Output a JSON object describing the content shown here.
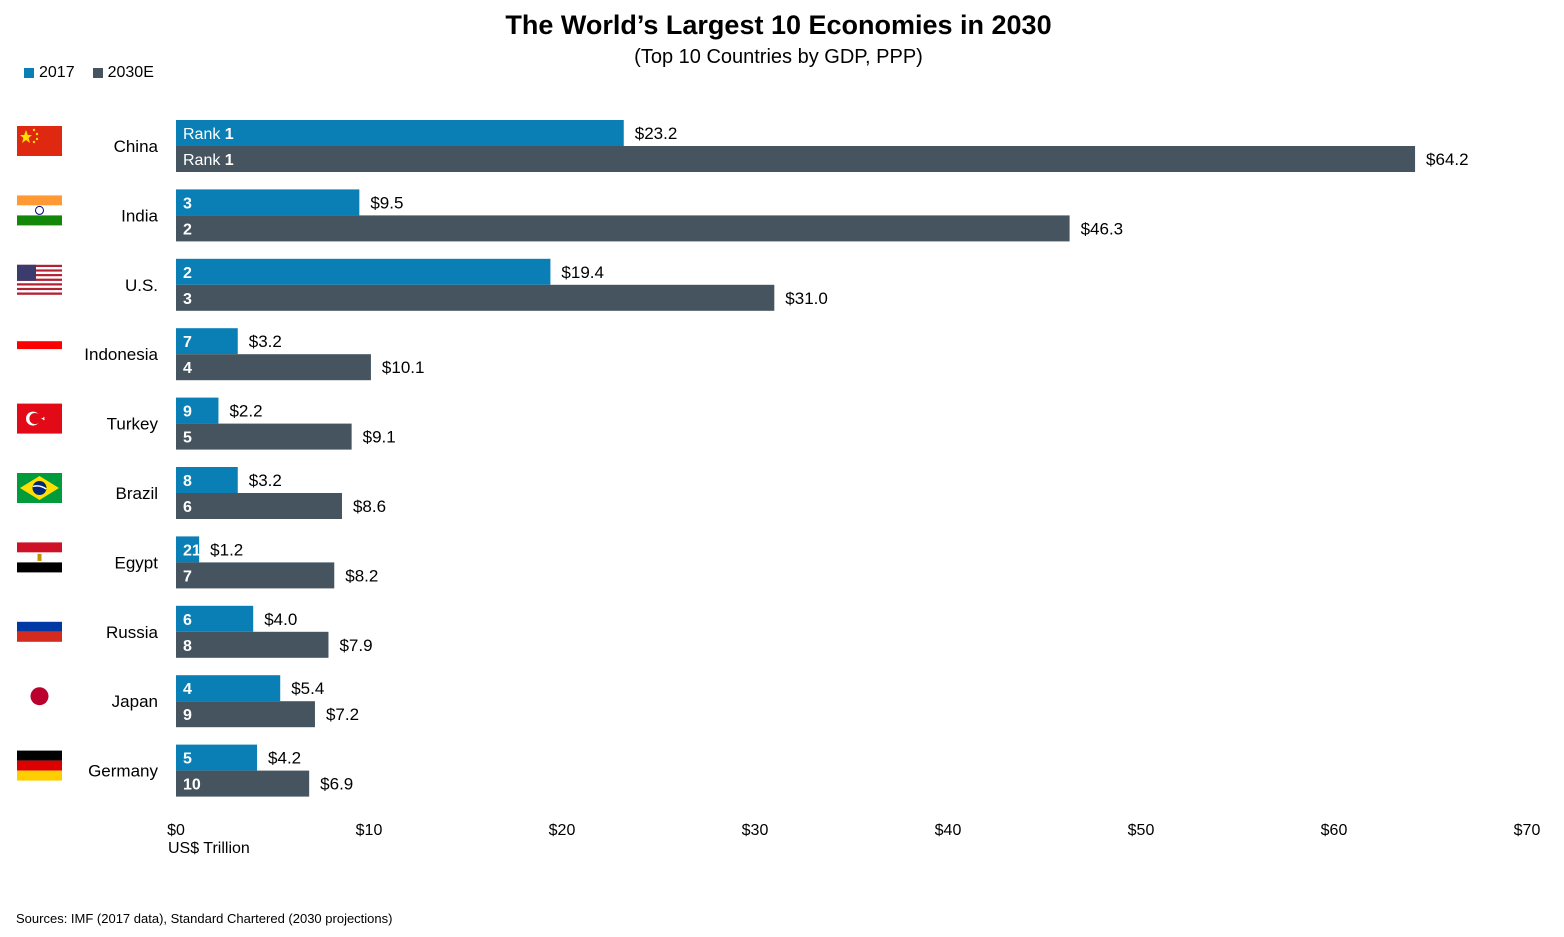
{
  "title": "The World’s Largest 10 Economies in 2030",
  "subtitle": "(Top 10 Countries by GDP, PPP)",
  "source": "Sources: IMF (2017 data), Standard Chartered (2030 projections)",
  "colors": {
    "series_2017": "#0a7fb5",
    "series_2030": "#45545f"
  },
  "chart_data": {
    "type": "bar",
    "orientation": "horizontal",
    "title": "The World’s Largest 10 Economies in 2030",
    "subtitle": "(Top 10 Countries by GDP, PPP)",
    "xlabel": "US$ Trillion",
    "ylabel": "",
    "xlim": [
      0,
      70
    ],
    "x_ticks": [
      0,
      10,
      20,
      30,
      40,
      50,
      60,
      70
    ],
    "x_tick_labels": [
      "$0",
      "$10",
      "$20",
      "$30",
      "$40",
      "$50",
      "$60",
      "$70"
    ],
    "legend_position": "top-left",
    "grid": false,
    "categories": [
      "China",
      "India",
      "U.S.",
      "Indonesia",
      "Turkey",
      "Brazil",
      "Egypt",
      "Russia",
      "Japan",
      "Germany"
    ],
    "rank_prefix": "Rank",
    "series": [
      {
        "name": "2017",
        "values": [
          23.2,
          9.5,
          19.4,
          3.2,
          2.2,
          3.2,
          1.2,
          4.0,
          5.4,
          4.2
        ],
        "value_labels": [
          "$23.2",
          "$9.5",
          "$19.4",
          "$3.2",
          "$2.2",
          "$3.2",
          "$1.2",
          "$4.0",
          "$5.4",
          "$4.2"
        ],
        "ranks": [
          "1",
          "3",
          "2",
          "7",
          "9",
          "8",
          "21",
          "6",
          "4",
          "5"
        ]
      },
      {
        "name": "2030E",
        "values": [
          64.2,
          46.3,
          31.0,
          10.1,
          9.1,
          8.6,
          8.2,
          7.9,
          7.2,
          6.9
        ],
        "value_labels": [
          "$64.2",
          "$46.3",
          "$31.0",
          "$10.1",
          "$9.1",
          "$8.6",
          "$8.2",
          "$7.9",
          "$7.2",
          "$6.9"
        ],
        "ranks": [
          "1",
          "2",
          "3",
          "4",
          "5",
          "6",
          "7",
          "8",
          "9",
          "10"
        ]
      }
    ],
    "flag_icons": [
      "china-flag-icon",
      "india-flag-icon",
      "us-flag-icon",
      "indonesia-flag-icon",
      "turkey-flag-icon",
      "brazil-flag-icon",
      "egypt-flag-icon",
      "russia-flag-icon",
      "japan-flag-icon",
      "germany-flag-icon"
    ]
  }
}
